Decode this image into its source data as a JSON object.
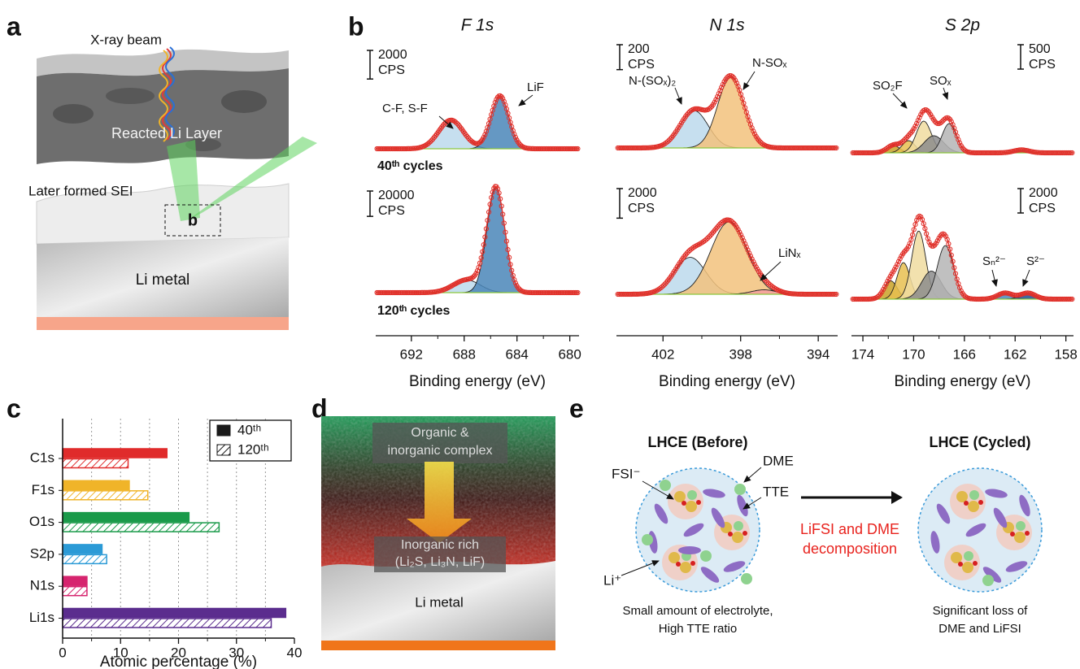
{
  "figure": {
    "panel_labels": [
      "a",
      "b",
      "c",
      "d",
      "e"
    ],
    "a": {
      "beam": "X-ray beam",
      "reacted_layer": "Reacted Li Layer",
      "sei": "Later formed SEI",
      "inset": "b",
      "metal": "Li metal"
    },
    "d": {
      "top_lines": [
        "Organic &",
        "inorganic complex"
      ],
      "bottom_lines": [
        "Inorganic rich",
        "(Li₂S, Li₃N, LiF)"
      ],
      "metal": "Li metal"
    },
    "e": {
      "before_title": "LHCE (Before)",
      "cycled_title": "LHCE (Cycled)",
      "labels": {
        "fsi": "FSI⁻",
        "dme": "DME",
        "tte": "TTE",
        "li": "Li⁺"
      },
      "process": [
        "LiFSI and DME",
        "decomposition"
      ],
      "before_caption": [
        "Small amount of electrolyte,",
        "High TTE ratio"
      ],
      "cycled_caption": [
        "Significant loss of",
        "DME and LiFSI"
      ]
    }
  },
  "chart_data": [
    {
      "type": "spectrum",
      "title": "F 1s",
      "cycle_label": "40ᵗʰ cycles",
      "scale_bar": {
        "value": 2000,
        "unit": "CPS"
      },
      "xlim": [
        694.7,
        679.3
      ],
      "ylim": [
        0,
        5000
      ],
      "peaks": [
        {
          "center": 689.0,
          "height": 2000,
          "fwhm": 2.2,
          "color": "#bcd9ec"
        },
        {
          "center": 685.3,
          "height": 3700,
          "fwhm": 1.6,
          "color": "#4a86b8"
        }
      ],
      "annotations": [
        "C-F, S-F",
        "LiF"
      ]
    },
    {
      "type": "spectrum",
      "cycle_label": "120ᵗʰ cycles",
      "scale_bar": {
        "value": 20000,
        "unit": "CPS"
      },
      "xlim": [
        694.7,
        679.3
      ],
      "xticks": [
        692,
        688,
        684,
        680
      ],
      "xlabel": "Binding energy (eV)",
      "ylim": [
        0,
        95000
      ],
      "peaks": [
        {
          "center": 687.8,
          "height": 10000,
          "fwhm": 2.4,
          "color": "#bcd9ec"
        },
        {
          "center": 685.6,
          "height": 83000,
          "fwhm": 1.6,
          "color": "#4a86b8"
        }
      ]
    },
    {
      "type": "spectrum",
      "title": "N 1s",
      "scale_bar": {
        "value": 200,
        "unit": "CPS"
      },
      "xlim": [
        404.4,
        393.0
      ],
      "ylim": [
        0,
        600
      ],
      "peaks": [
        {
          "center": 400.4,
          "height": 300,
          "fwhm": 1.7,
          "color": "#bcd9ec"
        },
        {
          "center": 398.5,
          "height": 570,
          "fwhm": 1.6,
          "color": "#f2c27d"
        }
      ],
      "annotations": [
        "N-(SOₓ)₂",
        "N-SOₓ"
      ]
    },
    {
      "type": "spectrum",
      "scale_bar": {
        "value": 2000,
        "unit": "CPS"
      },
      "xlim": [
        404.4,
        393.0
      ],
      "xticks": [
        402,
        398,
        394
      ],
      "xlabel": "Binding energy (eV)",
      "ylim": [
        0,
        5500
      ],
      "peaks": [
        {
          "center": 400.6,
          "height": 2500,
          "fwhm": 1.9,
          "color": "#bcd9ec"
        },
        {
          "center": 398.6,
          "height": 4900,
          "fwhm": 2.2,
          "color": "#f2c27d"
        },
        {
          "center": 396.8,
          "height": 300,
          "fwhm": 1.5,
          "color": "#f4a0a0"
        }
      ],
      "annotations": [
        "LiNₓ"
      ]
    },
    {
      "type": "spectrum",
      "title": "S 2p",
      "scale_bar": {
        "value": 500,
        "unit": "CPS"
      },
      "xlim": [
        174.9,
        157.4
      ],
      "ylim": [
        0,
        1500
      ],
      "peaks": [
        {
          "center": 171.6,
          "height": 150,
          "fwhm": 1.2,
          "color": "#c9a227"
        },
        {
          "center": 170.4,
          "height": 250,
          "fwhm": 1.2,
          "color": "#e8c050"
        },
        {
          "center": 169.2,
          "height": 650,
          "fwhm": 1.4,
          "color": "#f0dca0"
        },
        {
          "center": 168.4,
          "height": 350,
          "fwhm": 1.8,
          "color": "#8c8c8c"
        },
        {
          "center": 167.2,
          "height": 600,
          "fwhm": 1.3,
          "color": "#b5b5b5"
        },
        {
          "center": 161.5,
          "height": 60,
          "fwhm": 1.4,
          "color": "#4a86b8"
        }
      ],
      "annotations": [
        "SO₂F",
        "SOₓ"
      ]
    },
    {
      "type": "spectrum",
      "scale_bar": {
        "value": 2000,
        "unit": "CPS"
      },
      "xlim": [
        174.9,
        157.4
      ],
      "xticks": [
        174,
        170,
        166,
        162,
        158
      ],
      "xlabel": "Binding energy (eV)",
      "ylim": [
        0,
        7000
      ],
      "peaks": [
        {
          "center": 171.8,
          "height": 1500,
          "fwhm": 1.2,
          "color": "#c9a227"
        },
        {
          "center": 170.8,
          "height": 3000,
          "fwhm": 1.2,
          "color": "#e8c050"
        },
        {
          "center": 169.6,
          "height": 5600,
          "fwhm": 1.3,
          "color": "#f0dca0"
        },
        {
          "center": 168.6,
          "height": 2300,
          "fwhm": 1.8,
          "color": "#8c8c8c"
        },
        {
          "center": 167.5,
          "height": 4400,
          "fwhm": 1.5,
          "color": "#b5b5b5"
        },
        {
          "center": 162.8,
          "height": 500,
          "fwhm": 1.4,
          "color": "#4a86b8"
        },
        {
          "center": 161.0,
          "height": 500,
          "fwhm": 1.4,
          "color": "#1f4e8c"
        }
      ],
      "annotations": [
        "Sₙ²⁻",
        "S²⁻"
      ]
    },
    {
      "type": "bar",
      "orientation": "horizontal",
      "categories": [
        "C1s",
        "F1s",
        "O1s",
        "S2p",
        "N1s",
        "Li1s"
      ],
      "colors": [
        "#e02b2b",
        "#f0b429",
        "#1a9a4a",
        "#2b9ad6",
        "#d6246e",
        "#5b2d8e"
      ],
      "series": [
        {
          "name": "40ᵗʰ",
          "style": "solid",
          "color": "#1a1a1a",
          "values": [
            18,
            11.5,
            21.8,
            6.8,
            4.2,
            38.5
          ]
        },
        {
          "name": "120ᵗʰ",
          "style": "hatched",
          "color": "#1a1a1a",
          "values": [
            11.3,
            14.7,
            27,
            7.6,
            4.2,
            36
          ]
        }
      ],
      "xlim": [
        0,
        40
      ],
      "xticks": [
        0,
        10,
        20,
        30,
        40
      ],
      "minor_xticks": [
        5,
        15,
        25,
        35
      ],
      "xlabel": "Atomic percentage (%)",
      "grid": true,
      "legend": "top-right"
    }
  ]
}
